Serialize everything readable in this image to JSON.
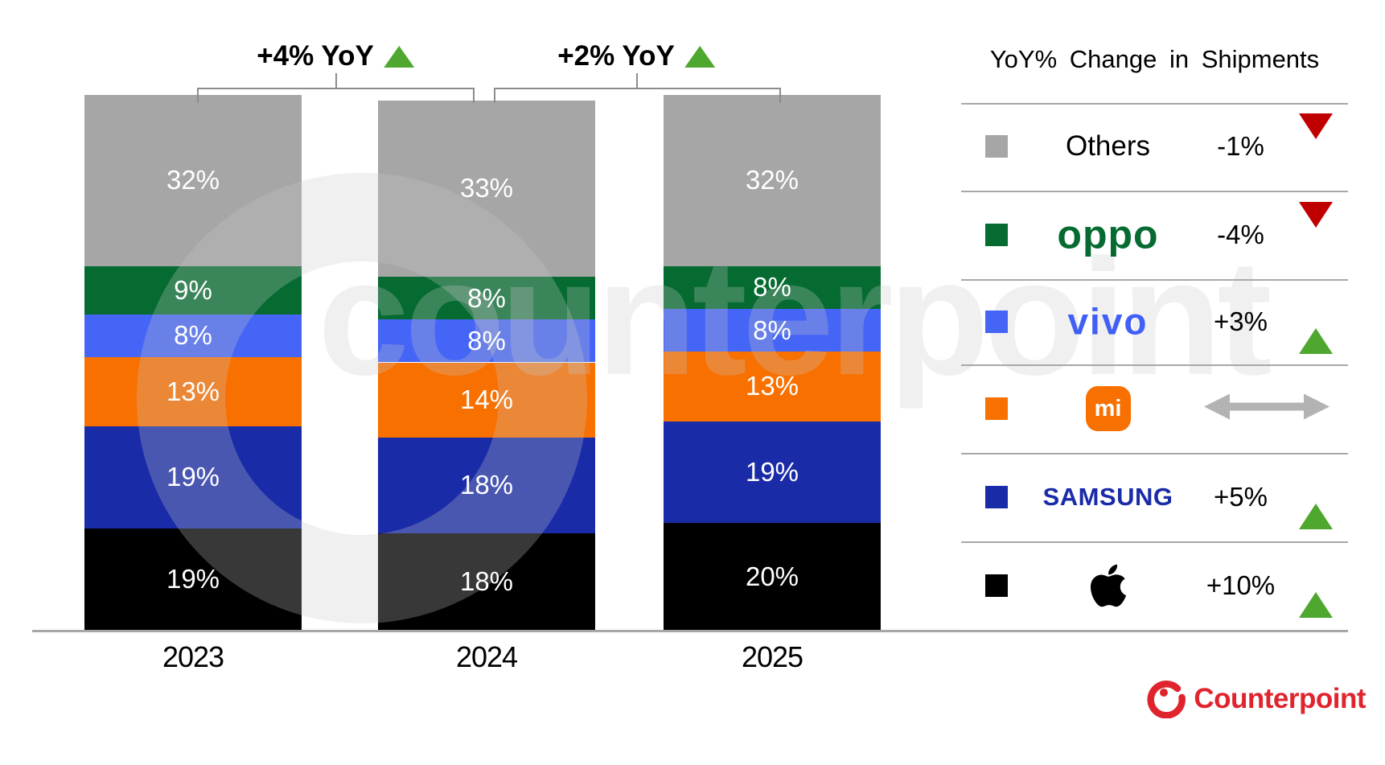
{
  "chart_data": {
    "type": "bar",
    "stacked": true,
    "title": "",
    "unit": "%",
    "ylim": [
      0,
      100
    ],
    "grid": false,
    "categories": [
      "2023",
      "2024",
      "2025"
    ],
    "series": [
      {
        "name": "Apple",
        "color": "#000000",
        "values": [
          19,
          18,
          20
        ]
      },
      {
        "name": "Samsung",
        "color": "#1a2ba8",
        "values": [
          19,
          18,
          19
        ]
      },
      {
        "name": "Xiaomi",
        "color": "#f87000",
        "values": [
          13,
          14,
          13
        ]
      },
      {
        "name": "vivo",
        "color": "#4565f6",
        "values": [
          8,
          8,
          8
        ]
      },
      {
        "name": "OPPO",
        "color": "#056b31",
        "values": [
          9,
          8,
          8
        ]
      },
      {
        "name": "Others",
        "color": "#a6a6a6",
        "values": [
          32,
          33,
          32
        ]
      }
    ],
    "annotations": [
      {
        "label": "+4% YoY",
        "direction": "up",
        "from": "2023",
        "to": "2024"
      },
      {
        "label": "+2% YoY",
        "direction": "up",
        "from": "2024",
        "to": "2025"
      }
    ]
  },
  "legend": {
    "title": "YoY% Change in Shipments",
    "rows": [
      {
        "brand": "Others",
        "logo_text": "Others",
        "change": "-1%",
        "direction": "down",
        "swatch": "#a6a6a6"
      },
      {
        "brand": "OPPO",
        "logo_text": "oppo",
        "change": "-4%",
        "direction": "down",
        "swatch": "#056b31"
      },
      {
        "brand": "vivo",
        "logo_text": "vivo",
        "change": "+3%",
        "direction": "up",
        "swatch": "#4565f6"
      },
      {
        "brand": "Xiaomi",
        "logo_text": "mi",
        "change": "",
        "direction": "flat",
        "swatch": "#f87000"
      },
      {
        "brand": "Samsung",
        "logo_text": "SAMSUNG",
        "change": "+5%",
        "direction": "up",
        "swatch": "#1a2ba8"
      },
      {
        "brand": "Apple",
        "logo_text": "",
        "change": "+10%",
        "direction": "up",
        "swatch": "#000000"
      }
    ]
  },
  "watermark": {
    "text": "counterpoint"
  },
  "footer": {
    "logo_text": "Counterpoint",
    "color": "#e0242e"
  },
  "colors": {
    "up": "#4EA72E",
    "down": "#C00000",
    "flat_arrow": "#b3b3b3",
    "axis": "#a6a6a6",
    "divider": "#a8a8a8",
    "bracket": "#8c8c8c"
  }
}
